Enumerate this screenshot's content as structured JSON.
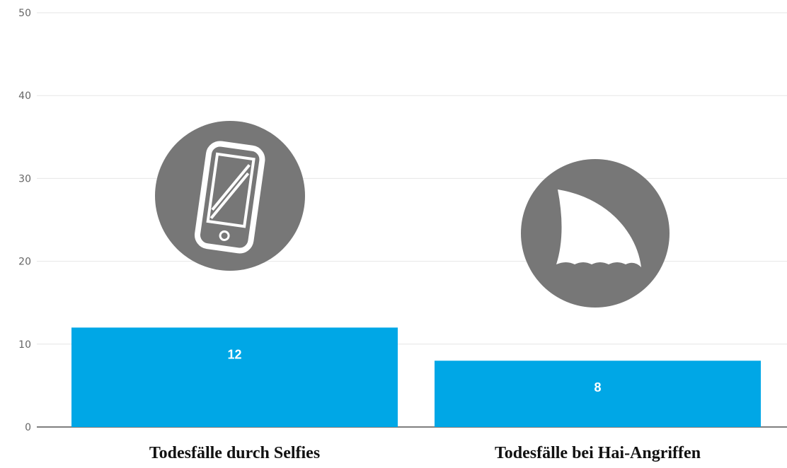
{
  "chart_data": {
    "type": "bar",
    "categories": [
      "Todesfälle durch Selfies",
      "Todesfälle bei Hai-Angriffen"
    ],
    "values": [
      12,
      8
    ],
    "value_labels": [
      "12",
      "8"
    ],
    "yticks": [
      "0",
      "10",
      "20",
      "30",
      "40",
      "50"
    ],
    "ylim": [
      0,
      50
    ],
    "grid": true,
    "bar_color": "#00a7e6",
    "icon_color": "#777777",
    "icons": [
      "smartphone-icon",
      "shark-fin-icon"
    ]
  }
}
